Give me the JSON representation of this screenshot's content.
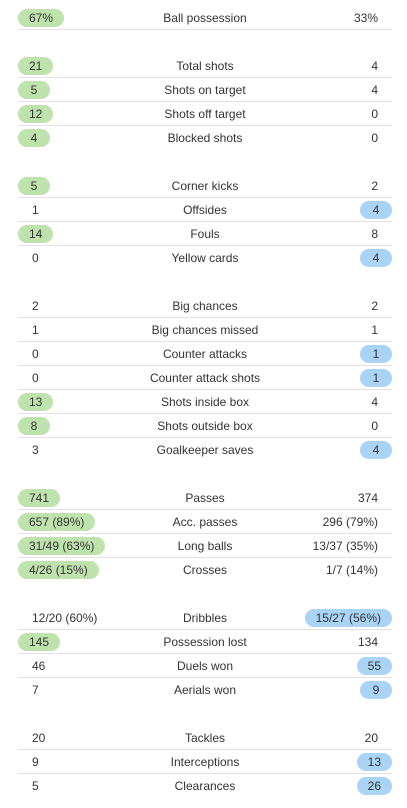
{
  "colors": {
    "home_highlight": "#bfe3ad",
    "away_highlight": "#a9d4f5"
  },
  "stats": [
    {
      "label": "Ball possession",
      "home": "67%",
      "away": "33%",
      "leader": "home"
    },
    {
      "label": "Total shots",
      "home": "21",
      "away": "4",
      "leader": "home"
    },
    {
      "label": "Shots on target",
      "home": "5",
      "away": "4",
      "leader": "home"
    },
    {
      "label": "Shots off target",
      "home": "12",
      "away": "0",
      "leader": "home"
    },
    {
      "label": "Blocked shots",
      "home": "4",
      "away": "0",
      "leader": "home"
    },
    {
      "label": "Corner kicks",
      "home": "5",
      "away": "2",
      "leader": "home"
    },
    {
      "label": "Offsides",
      "home": "1",
      "away": "4",
      "leader": "away"
    },
    {
      "label": "Fouls",
      "home": "14",
      "away": "8",
      "leader": "home"
    },
    {
      "label": "Yellow cards",
      "home": "0",
      "away": "4",
      "leader": "away"
    },
    {
      "label": "Big chances",
      "home": "2",
      "away": "2",
      "leader": "none"
    },
    {
      "label": "Big chances missed",
      "home": "1",
      "away": "1",
      "leader": "none"
    },
    {
      "label": "Counter attacks",
      "home": "0",
      "away": "1",
      "leader": "away"
    },
    {
      "label": "Counter attack shots",
      "home": "0",
      "away": "1",
      "leader": "away"
    },
    {
      "label": "Shots inside box",
      "home": "13",
      "away": "4",
      "leader": "home"
    },
    {
      "label": "Shots outside box",
      "home": "8",
      "away": "0",
      "leader": "home"
    },
    {
      "label": "Goalkeeper saves",
      "home": "3",
      "away": "4",
      "leader": "away"
    },
    {
      "label": "Passes",
      "home": "741",
      "away": "374",
      "leader": "home"
    },
    {
      "label": "Acc. passes",
      "home": "657 (89%)",
      "away": "296 (79%)",
      "leader": "home"
    },
    {
      "label": "Long balls",
      "home": "31/49 (63%)",
      "away": "13/37 (35%)",
      "leader": "home"
    },
    {
      "label": "Crosses",
      "home": "4/26 (15%)",
      "away": "1/7 (14%)",
      "leader": "home"
    },
    {
      "label": "Dribbles",
      "home": "12/20 (60%)",
      "away": "15/27 (56%)",
      "leader": "away"
    },
    {
      "label": "Possession lost",
      "home": "145",
      "away": "134",
      "leader": "home"
    },
    {
      "label": "Duels won",
      "home": "46",
      "away": "55",
      "leader": "away"
    },
    {
      "label": "Aerials won",
      "home": "7",
      "away": "9",
      "leader": "away"
    },
    {
      "label": "Tackles",
      "home": "20",
      "away": "20",
      "leader": "none"
    },
    {
      "label": "Interceptions",
      "home": "9",
      "away": "13",
      "leader": "away"
    },
    {
      "label": "Clearances",
      "home": "5",
      "away": "26",
      "leader": "away"
    }
  ]
}
